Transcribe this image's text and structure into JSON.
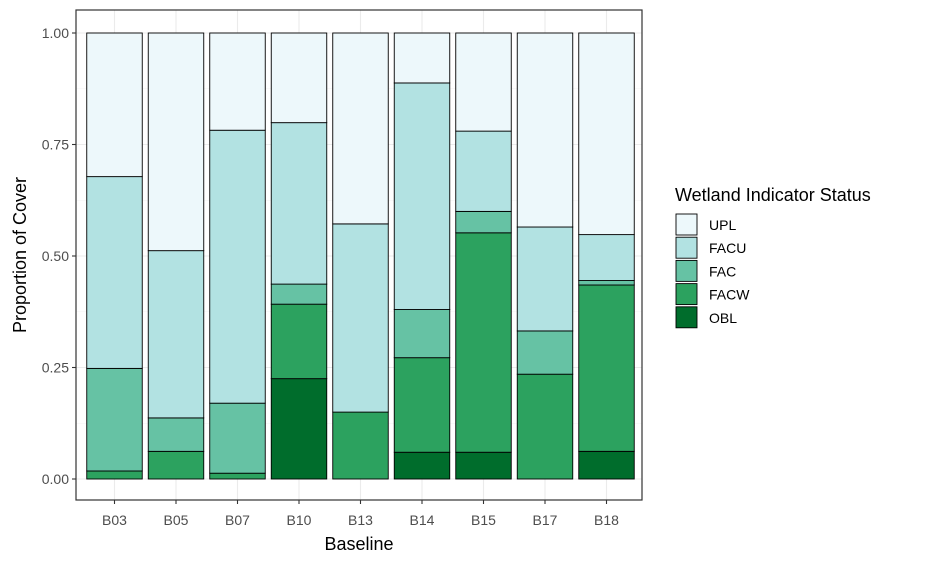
{
  "chart_data": {
    "type": "bar",
    "stacked": true,
    "normalized": true,
    "xlabel": "Baseline",
    "ylabel": "Proportion of Cover",
    "categories": [
      "B03",
      "B05",
      "B07",
      "B10",
      "B13",
      "B14",
      "B15",
      "B17",
      "B18"
    ],
    "ylim": [
      0,
      1
    ],
    "yticks": [
      0.0,
      0.25,
      0.5,
      0.75,
      1.0
    ],
    "ytick_labels": [
      "0.00",
      "0.25",
      "0.50",
      "0.75",
      "1.00"
    ],
    "grid": true,
    "legend": {
      "title": "Wetland Indicator Status",
      "placement": "right",
      "entries": [
        "UPL",
        "FACU",
        "FAC",
        "FACW",
        "OBL"
      ]
    },
    "series": [
      {
        "name": "OBL",
        "color": "#006d2c",
        "values": [
          0.0,
          0.0,
          0.0,
          0.225,
          0.0,
          0.06,
          0.06,
          0.0,
          0.062
        ]
      },
      {
        "name": "FACW",
        "color": "#2ca25f",
        "values": [
          0.018,
          0.062,
          0.013,
          0.167,
          0.15,
          0.212,
          0.492,
          0.235,
          0.373
        ]
      },
      {
        "name": "FAC",
        "color": "#66c2a4",
        "values": [
          0.23,
          0.075,
          0.157,
          0.045,
          0.0,
          0.108,
          0.048,
          0.097,
          0.01
        ]
      },
      {
        "name": "FACU",
        "color": "#b2e2e2",
        "values": [
          0.43,
          0.375,
          0.612,
          0.362,
          0.422,
          0.508,
          0.18,
          0.233,
          0.103
        ]
      },
      {
        "name": "UPL",
        "color": "#edf8fb",
        "values": [
          0.322,
          0.488,
          0.218,
          0.201,
          0.428,
          0.112,
          0.22,
          0.435,
          0.452
        ]
      }
    ]
  }
}
